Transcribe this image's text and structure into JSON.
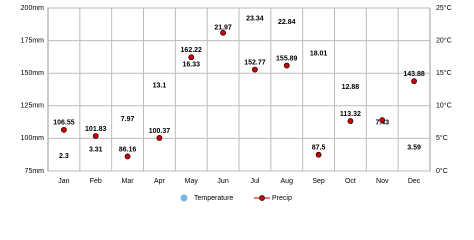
{
  "chart_data": {
    "type": "climate",
    "categories": [
      "Jan",
      "Feb",
      "Mar",
      "Apr",
      "May",
      "Jun",
      "Jul",
      "Aug",
      "Sep",
      "Oct",
      "Nov",
      "Dec"
    ],
    "series": [
      {
        "name": "Temperature",
        "color": "#7fb2e5",
        "axis": "y2",
        "markers": false,
        "values": [
          2.3,
          3.31,
          7.97,
          13.1,
          16.33,
          21.97,
          23.34,
          22.84,
          18.01,
          12.88,
          7.43,
          3.59
        ]
      },
      {
        "name": "Precip",
        "color": "#cc0000",
        "values": [
          106.55,
          101.83,
          86.16,
          100.37,
          162.22,
          181,
          152.77,
          155.89,
          87.5,
          113.32,
          114,
          143.88
        ],
        "value_labels": [
          "106.55",
          "101.83",
          "86.16",
          "100.37",
          "162.22",
          null,
          "152.77",
          "155.89",
          "87.5",
          "113.32",
          null,
          "143.88"
        ]
      }
    ],
    "ylim": [
      75,
      200
    ],
    "yticks": [
      {
        "value": 75,
        "label": "75mm"
      },
      {
        "value": 100,
        "label": "100mm"
      },
      {
        "value": 125,
        "label": "125mm"
      },
      {
        "value": 150,
        "label": "150mm"
      },
      {
        "value": 175,
        "label": "175mm"
      },
      {
        "value": 200,
        "label": "200mm"
      }
    ],
    "y2lim": [
      0,
      25
    ],
    "y2ticks": [
      {
        "value": 0,
        "label": "0°C"
      },
      {
        "value": 5,
        "label": "5°C"
      },
      {
        "value": 10,
        "label": "10°C"
      },
      {
        "value": 15,
        "label": "15°C"
      },
      {
        "value": 20,
        "label": "20°C"
      },
      {
        "value": 25,
        "label": "25°C"
      }
    ],
    "grid": true
  }
}
